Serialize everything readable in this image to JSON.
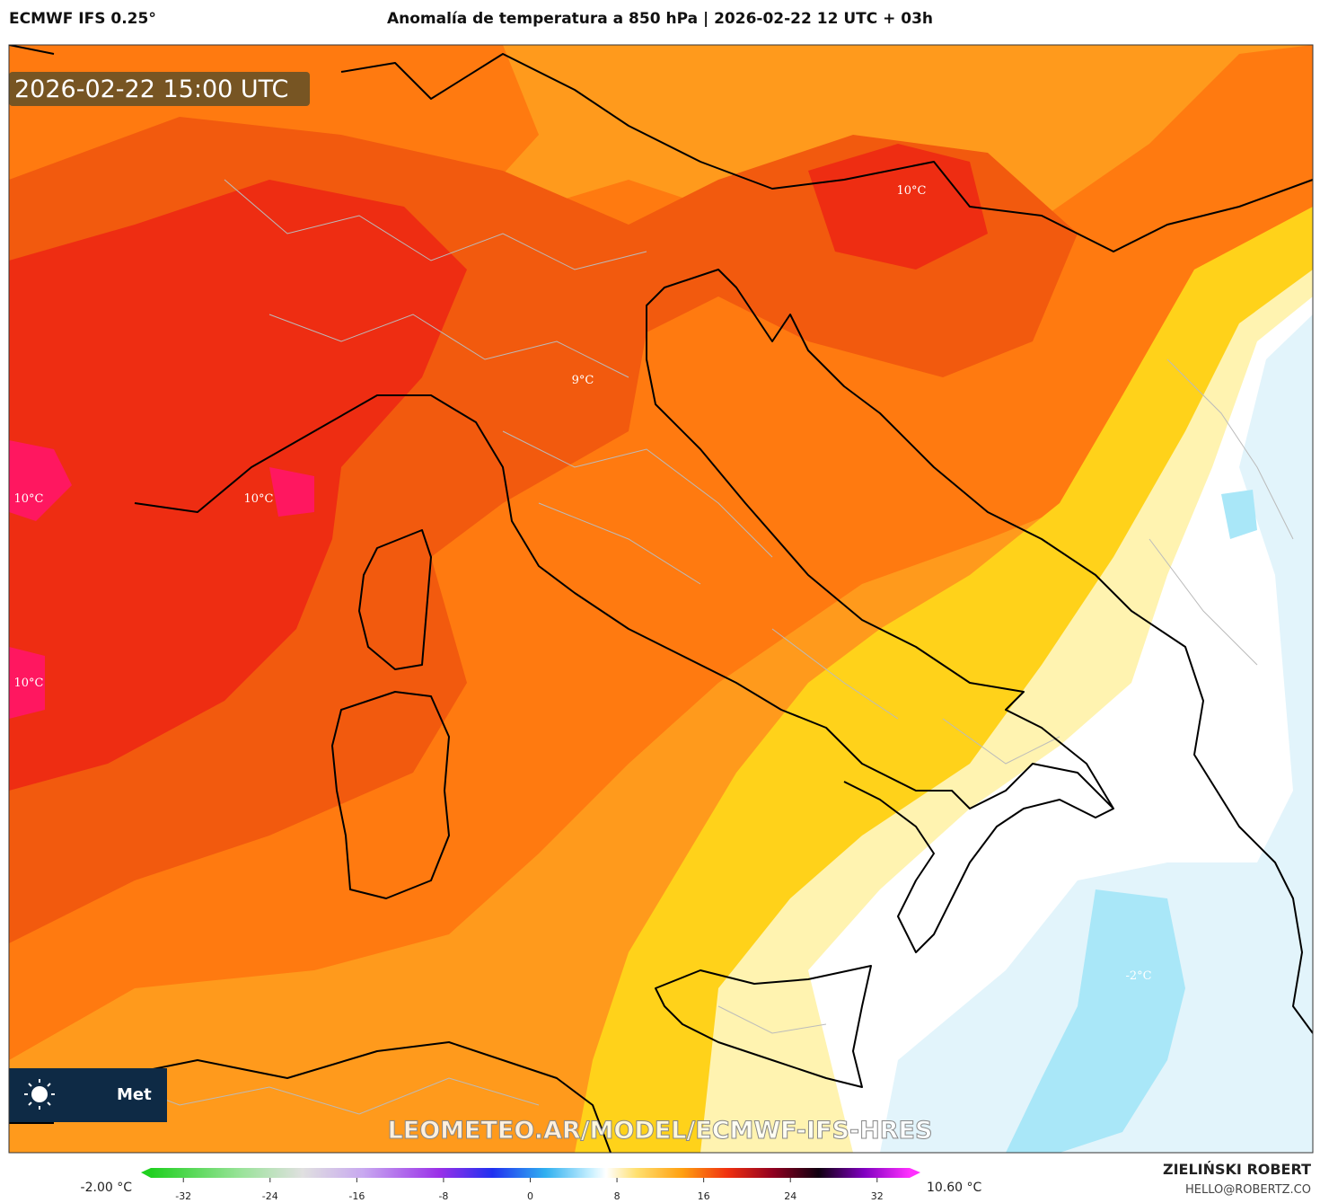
{
  "header": {
    "model": "ECMWF IFS 0.25°",
    "title": "Anomalía de temperatura a 850 hPa | 2026-02-22 12 UTC + 03h"
  },
  "map": {
    "timestamp": "2026-02-22 15:00 UTC",
    "contour_labels": [
      "10°C",
      "9°C",
      "10°C",
      "10°C",
      "10°C",
      "-2°C"
    ],
    "watermark": "LEOMETEO.AR/MODEL/ECMWF-IFS-HRES",
    "logo": "Met"
  },
  "colorbar": {
    "min_label": "-2.00 °C",
    "max_label": "10.60 °C",
    "lim": [
      -35,
      35
    ],
    "ticks": [
      -32,
      -24,
      -16,
      -8,
      0,
      8,
      16,
      24,
      32
    ]
  },
  "credits": {
    "author": "ZIELIŃSKI ROBERT",
    "email": "HELLO@ROBERTZ.CO"
  }
}
